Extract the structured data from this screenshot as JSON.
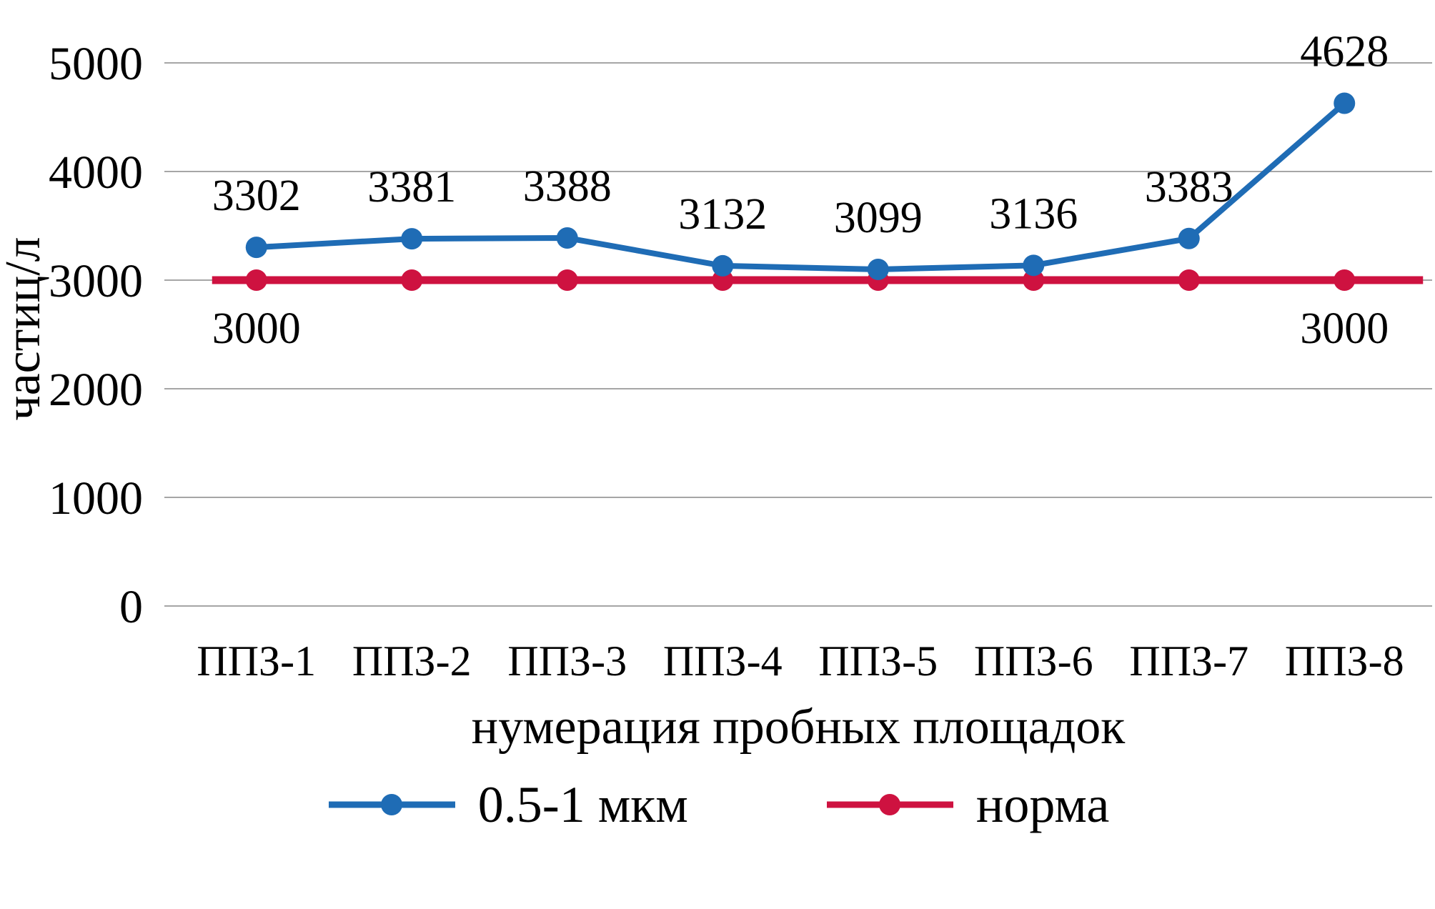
{
  "chart_data": {
    "type": "line",
    "title": "",
    "categories": [
      "ППЗ-1",
      "ППЗ-2",
      "ППЗ-3",
      "ППЗ-4",
      "ППЗ-5",
      "ППЗ-6",
      "ППЗ-7",
      "ППЗ-8"
    ],
    "series": [
      {
        "name": "0.5-1 мкм",
        "color": "#1F6CB5",
        "values": [
          3302,
          3381,
          3388,
          3132,
          3099,
          3136,
          3383,
          4628
        ],
        "show_labels": "above",
        "extends_beyond_points": false
      },
      {
        "name": "норма",
        "color": "#CE1240",
        "values": [
          3000,
          3000,
          3000,
          3000,
          3000,
          3000,
          3000,
          3000
        ],
        "point_labels": [
          {
            "index": 0,
            "text": "3000"
          },
          {
            "index": 7,
            "text": "3000"
          }
        ],
        "extends_beyond_points": true
      }
    ],
    "xlabel": "нумерация пробных площадок",
    "ylabel": "частиц/л",
    "ylim": [
      0,
      5000
    ],
    "yticks": [
      0,
      1000,
      2000,
      3000,
      4000,
      5000
    ],
    "grid": "horizontal",
    "gridline_color": "#A6A6A6",
    "legend_position": "bottom"
  }
}
